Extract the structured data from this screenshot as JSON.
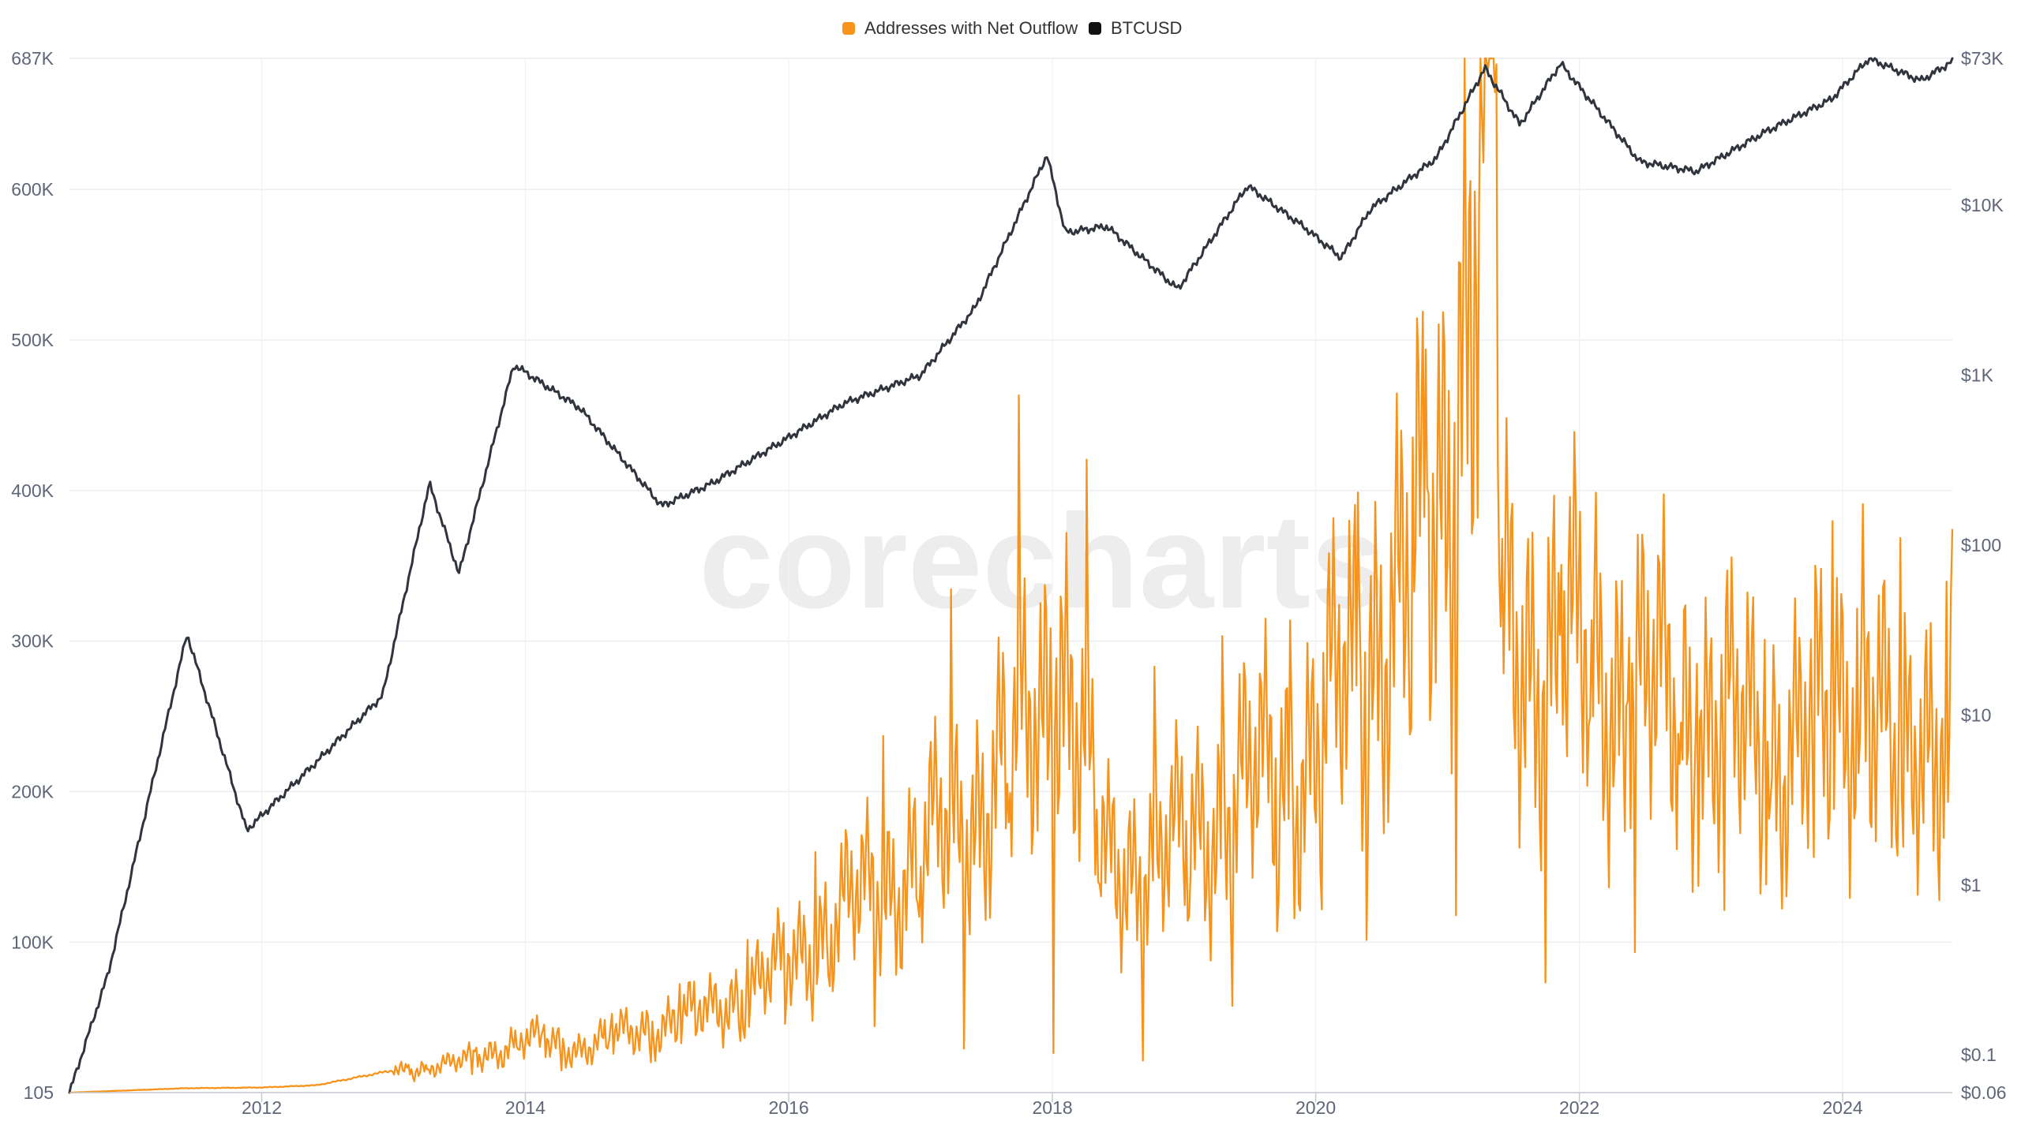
{
  "watermark": "corecharts",
  "legend": [
    {
      "label": "Addresses with Net Outflow",
      "color": "#f7931a"
    },
    {
      "label": "BTCUSD",
      "color": "#111111"
    }
  ],
  "chart_data": {
    "type": "line",
    "title": "",
    "xlabel": "",
    "ylabel_left": "",
    "ylabel_right": "",
    "x_ticks": [
      "2012",
      "2014",
      "2016",
      "2018",
      "2020",
      "2022",
      "2024"
    ],
    "left_axis": {
      "ticks": [
        "105",
        "100K",
        "200K",
        "300K",
        "400K",
        "500K",
        "600K",
        "687K"
      ],
      "range": [
        105,
        687000
      ],
      "scale": "linear"
    },
    "right_axis": {
      "ticks": [
        "$0.06",
        "$0.1",
        "$1",
        "$10",
        "$100",
        "$1K",
        "$10K",
        "$73K"
      ],
      "range": [
        0.06,
        73000
      ],
      "scale": "log"
    },
    "series": [
      {
        "name": "Addresses with Net Outflow",
        "axis": "left",
        "color": "#f7931a",
        "points": [
          [
            "2010-07-17",
            105
          ],
          [
            "2011-06-01",
            3000
          ],
          [
            "2012-01-01",
            3500
          ],
          [
            "2012-06-01",
            5000
          ],
          [
            "2013-01-01",
            15000
          ],
          [
            "2013-06-01",
            18000
          ],
          [
            "2014-01-01",
            35000
          ],
          [
            "2014-06-01",
            30000
          ],
          [
            "2015-01-01",
            45000
          ],
          [
            "2015-06-01",
            55000
          ],
          [
            "2015-12-01",
            80000
          ],
          [
            "2016-06-01",
            120000
          ],
          [
            "2016-12-01",
            150000
          ],
          [
            "2017-06-01",
            190000
          ],
          [
            "2017-12-01",
            250000
          ],
          [
            "2018-01-10",
            310000
          ],
          [
            "2018-06-01",
            150000
          ],
          [
            "2018-12-01",
            160000
          ],
          [
            "2019-06-01",
            200000
          ],
          [
            "2019-12-01",
            220000
          ],
          [
            "2020-06-01",
            300000
          ],
          [
            "2020-12-01",
            370000
          ],
          [
            "2021-05-10",
            687000
          ],
          [
            "2021-06-01",
            300000
          ],
          [
            "2021-12-01",
            290000
          ],
          [
            "2022-06-01",
            270000
          ],
          [
            "2022-12-01",
            250000
          ],
          [
            "2023-06-01",
            230000
          ],
          [
            "2023-12-01",
            240000
          ],
          [
            "2024-03-01",
            300000
          ],
          [
            "2024-06-01",
            200000
          ],
          [
            "2024-10-31",
            280000
          ]
        ]
      },
      {
        "name": "BTCUSD",
        "axis": "right",
        "color": "#111111",
        "points": [
          [
            "2010-07-17",
            0.06
          ],
          [
            "2010-11-01",
            0.3
          ],
          [
            "2011-06-08",
            30
          ],
          [
            "2011-11-20",
            2.1
          ],
          [
            "2012-06-01",
            5.3
          ],
          [
            "2012-12-01",
            13
          ],
          [
            "2013-04-10",
            230
          ],
          [
            "2013-07-01",
            68
          ],
          [
            "2013-11-30",
            1150
          ],
          [
            "2014-06-01",
            640
          ],
          [
            "2015-01-14",
            170
          ],
          [
            "2015-06-01",
            230
          ],
          [
            "2016-01-01",
            430
          ],
          [
            "2016-06-01",
            680
          ],
          [
            "2017-01-01",
            1000
          ],
          [
            "2017-06-01",
            2500
          ],
          [
            "2017-12-17",
            19700
          ],
          [
            "2018-02-06",
            6900
          ],
          [
            "2018-06-01",
            7500
          ],
          [
            "2018-12-15",
            3200
          ],
          [
            "2019-06-26",
            13000
          ],
          [
            "2019-12-01",
            7400
          ],
          [
            "2020-03-12",
            4900
          ],
          [
            "2020-06-01",
            9500
          ],
          [
            "2020-12-01",
            19000
          ],
          [
            "2021-04-14",
            64000
          ],
          [
            "2021-07-20",
            29800
          ],
          [
            "2021-11-10",
            68000
          ],
          [
            "2022-06-18",
            18000
          ],
          [
            "2022-11-21",
            15800
          ],
          [
            "2023-06-01",
            27000
          ],
          [
            "2023-12-01",
            42000
          ],
          [
            "2024-03-14",
            73000
          ],
          [
            "2024-08-05",
            54000
          ],
          [
            "2024-10-31",
            70000
          ]
        ]
      }
    ],
    "grid": true,
    "legend_position": "top-center"
  }
}
